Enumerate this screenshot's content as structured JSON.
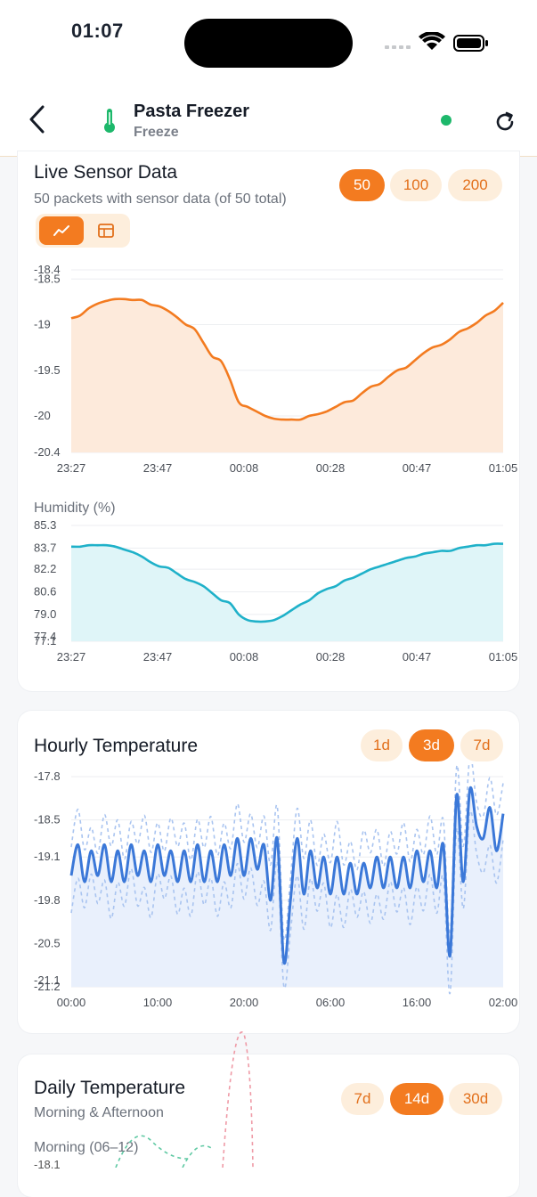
{
  "status_bar": {
    "time": "01:07",
    "icons": [
      "signal-icon",
      "wifi-icon",
      "battery-icon"
    ]
  },
  "header": {
    "title": "Pasta Freezer",
    "subtitle": "Freeze",
    "status_color": "#1db86b",
    "icons": [
      "back-chevron-icon",
      "thermometer-icon",
      "refresh-icon"
    ]
  },
  "live_card": {
    "title": "Live Sensor Data",
    "subtitle": "50 packets with sensor data (of 50 total)",
    "packet_options": [
      {
        "label": "50",
        "active": true
      },
      {
        "label": "100",
        "active": false
      },
      {
        "label": "200",
        "active": false
      }
    ],
    "view_modes": [
      {
        "icon": "line-chart-icon",
        "active": true
      },
      {
        "icon": "table-icon",
        "active": false
      }
    ],
    "humidity_label": "Humidity (%)"
  },
  "hourly_card": {
    "title": "Hourly Temperature",
    "range_options": [
      {
        "label": "1d",
        "active": false
      },
      {
        "label": "3d",
        "active": true
      },
      {
        "label": "7d",
        "active": false
      }
    ]
  },
  "daily_card": {
    "title": "Daily Temperature",
    "subtitle": "Morning & Afternoon",
    "range_options": [
      {
        "label": "7d",
        "active": false
      },
      {
        "label": "14d",
        "active": true
      },
      {
        "label": "30d",
        "active": false
      }
    ],
    "morning_label": "Morning (06–12)"
  },
  "chart_data": [
    {
      "type": "area",
      "x_ticks": [
        "23:27",
        "23:47",
        "00:08",
        "00:28",
        "00:47",
        "01:05"
      ],
      "y_ticks": [
        "-18.4",
        "-18.5",
        "-19",
        "-19.5",
        "-20",
        "-20.4"
      ],
      "ylim": [
        -20.4,
        -18.4
      ],
      "color": "#f37b20",
      "values": [
        -18.93,
        -18.9,
        -18.82,
        -18.77,
        -18.74,
        -18.72,
        -18.72,
        -18.73,
        -18.73,
        -18.78,
        -18.8,
        -18.85,
        -18.92,
        -19.0,
        -19.05,
        -19.2,
        -19.35,
        -19.4,
        -19.6,
        -19.85,
        -19.9,
        -19.95,
        -20.0,
        -20.03,
        -20.04,
        -20.04,
        -20.04,
        -20.0,
        -19.98,
        -19.95,
        -19.9,
        -19.85,
        -19.83,
        -19.75,
        -19.68,
        -19.65,
        -19.57,
        -19.5,
        -19.47,
        -19.39,
        -19.31,
        -19.25,
        -19.22,
        -19.16,
        -19.08,
        -19.04,
        -18.98,
        -18.9,
        -18.85,
        -18.76
      ]
    },
    {
      "type": "area",
      "ylabel": "Humidity (%)",
      "x_ticks": [
        "23:27",
        "23:47",
        "00:08",
        "00:28",
        "00:47",
        "01:05"
      ],
      "y_ticks": [
        "85.3",
        "83.7",
        "82.2",
        "80.6",
        "79.0",
        "77.4",
        "77.1"
      ],
      "ylim": [
        77.1,
        85.3
      ],
      "color": "#1fb1c9",
      "values": [
        83.8,
        83.8,
        83.9,
        83.9,
        83.9,
        83.8,
        83.6,
        83.4,
        83.1,
        82.7,
        82.4,
        82.3,
        81.9,
        81.5,
        81.3,
        81.0,
        80.5,
        80.0,
        79.8,
        79.0,
        78.6,
        78.5,
        78.5,
        78.6,
        78.9,
        79.3,
        79.7,
        80.0,
        80.5,
        80.8,
        81.0,
        81.4,
        81.6,
        81.9,
        82.2,
        82.4,
        82.6,
        82.8,
        83.0,
        83.1,
        83.3,
        83.4,
        83.5,
        83.5,
        83.7,
        83.8,
        83.9,
        83.9,
        84.0,
        84.0
      ]
    },
    {
      "type": "line",
      "x_ticks": [
        "00:00",
        "10:00",
        "20:00",
        "06:00",
        "16:00",
        "02:00"
      ],
      "y_ticks": [
        "-17.8",
        "-18.5",
        "-19.1",
        "-19.8",
        "-20.5",
        "-21.1",
        "-21.2"
      ],
      "ylim": [
        -21.2,
        -17.8
      ],
      "color": "#3b78d8",
      "values": [
        -19.4,
        -18.9,
        -19.5,
        -19.0,
        -19.4,
        -18.9,
        -19.5,
        -19.0,
        -19.5,
        -18.9,
        -19.4,
        -19.0,
        -19.5,
        -18.9,
        -19.4,
        -19.0,
        -19.5,
        -19.0,
        -19.5,
        -18.9,
        -19.5,
        -19.0,
        -19.5,
        -18.9,
        -19.4,
        -18.8,
        -19.4,
        -18.8,
        -19.3,
        -18.9,
        -19.8,
        -18.8,
        -20.8,
        -19.8,
        -18.8,
        -19.7,
        -19.0,
        -19.6,
        -19.1,
        -19.7,
        -19.1,
        -19.7,
        -19.2,
        -19.7,
        -19.2,
        -19.6,
        -19.1,
        -19.6,
        -19.1,
        -19.6,
        -19.1,
        -19.6,
        -19.0,
        -19.5,
        -19.0,
        -19.6,
        -18.9,
        -20.7,
        -18.1,
        -19.5,
        -18.0,
        -18.6,
        -18.8,
        -18.3,
        -19.0,
        -18.4
      ]
    }
  ]
}
